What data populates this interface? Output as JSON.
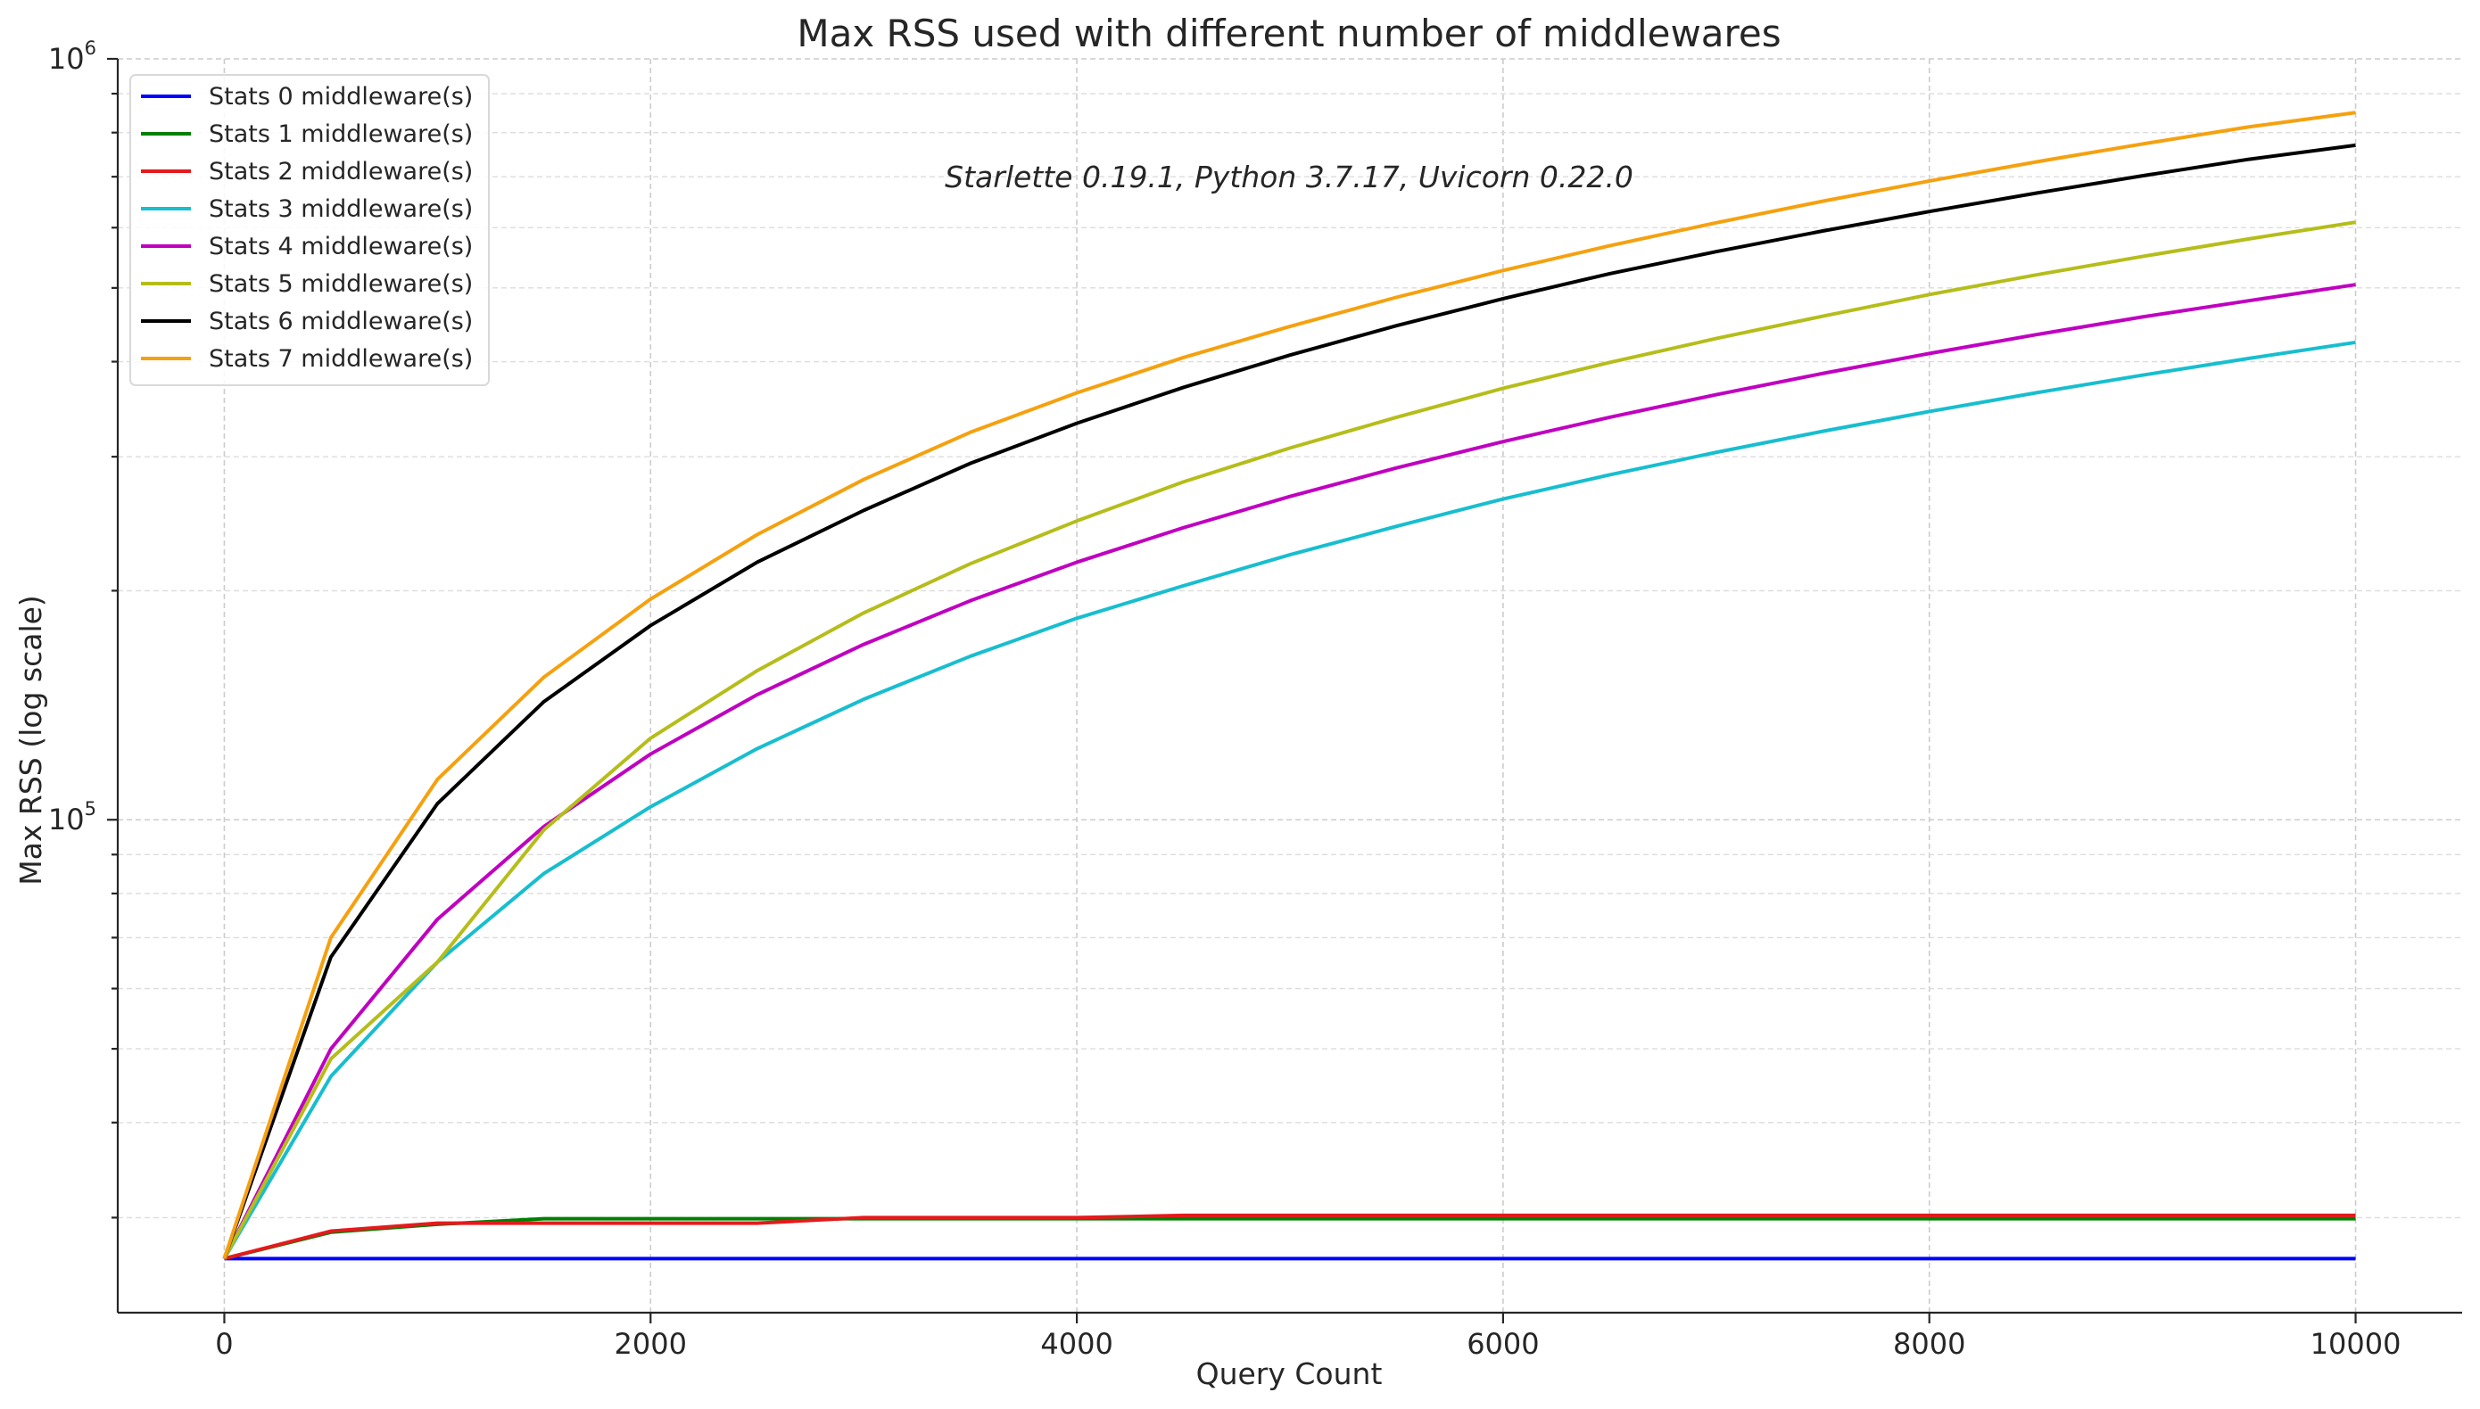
{
  "chart_data": {
    "type": "line",
    "title": "Max RSS used with different number of middlewares",
    "xlabel": "Query Count",
    "ylabel": "Max RSS (log scale)",
    "annotation": "Starlette 0.19.1, Python 3.7.17, Uvicorn 0.22.0",
    "xlim": [
      -500,
      10500
    ],
    "ylim": [
      22500,
      1000000
    ],
    "yscale": "log",
    "grid": true,
    "legend_position": "top-left",
    "xticks": [
      0,
      2000,
      4000,
      6000,
      8000,
      10000
    ],
    "xtick_labels": [
      "0",
      "2000",
      "4000",
      "6000",
      "8000",
      "10000"
    ],
    "ytick_labels": [
      {
        "value": 100000,
        "base": "10",
        "exp": "5"
      },
      {
        "value": 1000000,
        "base": "10",
        "exp": "6"
      }
    ],
    "x": [
      0,
      500,
      1000,
      1500,
      2000,
      2500,
      3000,
      3500,
      4000,
      4500,
      5000,
      5500,
      6000,
      6500,
      7000,
      7500,
      8000,
      8500,
      9000,
      9500,
      10000
    ],
    "series": [
      {
        "name": "Stats 0 middleware(s)",
        "color": "#0000ff",
        "values": [
          26500,
          26500,
          26500,
          26500,
          26500,
          26500,
          26500,
          26500,
          26500,
          26500,
          26500,
          26500,
          26500,
          26500,
          26500,
          26500,
          26500,
          26500,
          26500,
          26500,
          26500
        ]
      },
      {
        "name": "Stats 1 middleware(s)",
        "color": "#008000",
        "values": [
          26500,
          28700,
          29400,
          29900,
          29900,
          29900,
          29900,
          29900,
          29900,
          29900,
          29900,
          29900,
          29900,
          29900,
          29900,
          29900,
          29900,
          29900,
          29900,
          29900,
          29900
        ]
      },
      {
        "name": "Stats 2 middleware(s)",
        "color": "#e41a1c",
        "values": [
          26500,
          28800,
          29500,
          29500,
          29500,
          29500,
          30000,
          30000,
          30000,
          30200,
          30200,
          30200,
          30200,
          30200,
          30200,
          30200,
          30200,
          30200,
          30200,
          30200,
          30200
        ]
      },
      {
        "name": "Stats 3 middleware(s)",
        "color": "#17becf",
        "values": [
          26500,
          46000,
          65000,
          85000,
          104000,
          124000,
          144000,
          164000,
          184000,
          203000,
          223000,
          243000,
          264000,
          284000,
          304000,
          324000,
          344000,
          364000,
          384000,
          404000,
          424000
        ]
      },
      {
        "name": "Stats 4 middleware(s)",
        "color": "#c000c0",
        "values": [
          26500,
          50000,
          74000,
          98000,
          122000,
          146000,
          170000,
          194000,
          218000,
          242000,
          266000,
          290000,
          314000,
          338000,
          362000,
          386000,
          410000,
          434000,
          458000,
          481000,
          505000
        ]
      },
      {
        "name": "Stats 5 middleware(s)",
        "color": "#b5bd1a",
        "values": [
          26500,
          48500,
          65000,
          97000,
          128000,
          157000,
          187000,
          217000,
          247000,
          278000,
          308000,
          338000,
          369000,
          399000,
          429000,
          459000,
          490000,
          520000,
          550000,
          580000,
          610000
        ]
      },
      {
        "name": "Stats 6 middleware(s)",
        "color": "#000000",
        "values": [
          26500,
          66000,
          105000,
          143000,
          180000,
          218000,
          255000,
          294000,
          332000,
          370000,
          408000,
          446000,
          484000,
          522000,
          558000,
          594000,
          630000,
          666000,
          702000,
          738000,
          770000
        ]
      },
      {
        "name": "Stats 7 middleware(s)",
        "color": "#f5a10f",
        "values": [
          26500,
          70000,
          113000,
          154000,
          195000,
          237000,
          280000,
          323000,
          364000,
          405000,
          445000,
          486000,
          527000,
          568000,
          609000,
          650000,
          691000,
          732000,
          773000,
          814000,
          850000
        ]
      }
    ]
  }
}
